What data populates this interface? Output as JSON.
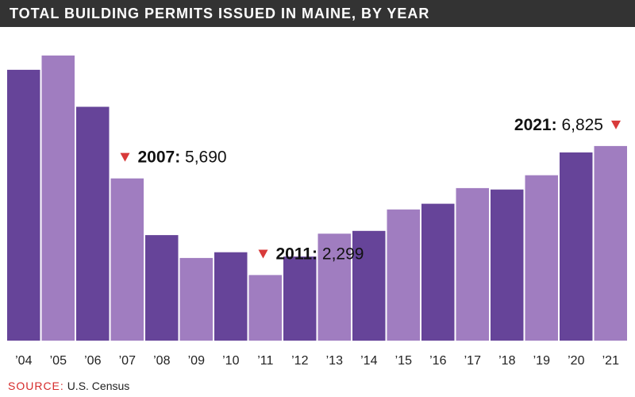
{
  "title": "TOTAL BUILDING PERMITS ISSUED IN MAINE, BY YEAR",
  "source_label": "SOURCE:",
  "source_text": "U.S. Census",
  "colors": {
    "dark_bar": "#664499",
    "light_bar": "#a07dc0",
    "marker": "#d83a3a",
    "title_bg": "#333333"
  },
  "chart_data": {
    "type": "bar",
    "title": "TOTAL BUILDING PERMITS ISSUED IN MAINE, BY YEAR",
    "categories": [
      "’04",
      "’05",
      "’06",
      "’07",
      "’08",
      "’09",
      "’10",
      "’11",
      "’12",
      "’13",
      "’14",
      "’15",
      "’16",
      "’17",
      "’18",
      "’19",
      "’20",
      "’21"
    ],
    "values": [
      9500,
      10000,
      8200,
      5690,
      3700,
      2900,
      3100,
      2299,
      2950,
      3750,
      3850,
      4600,
      4800,
      5350,
      5300,
      5800,
      6600,
      6825
    ],
    "ylim": [
      0,
      11000
    ],
    "xlabel": "",
    "ylabel": "",
    "grid": false,
    "legend": "none",
    "bar_color_pattern": [
      "dark",
      "light"
    ],
    "annotations": [
      {
        "year": "2007:",
        "value": "5,690",
        "category": "’07",
        "marker": "down-triangle",
        "marker_side": "left"
      },
      {
        "year": "2011:",
        "value": "2,299",
        "category": "’11",
        "marker": "down-triangle",
        "marker_side": "left"
      },
      {
        "year": "2021:",
        "value": "6,825",
        "category": "’21",
        "marker": "down-triangle",
        "marker_side": "right"
      }
    ]
  }
}
